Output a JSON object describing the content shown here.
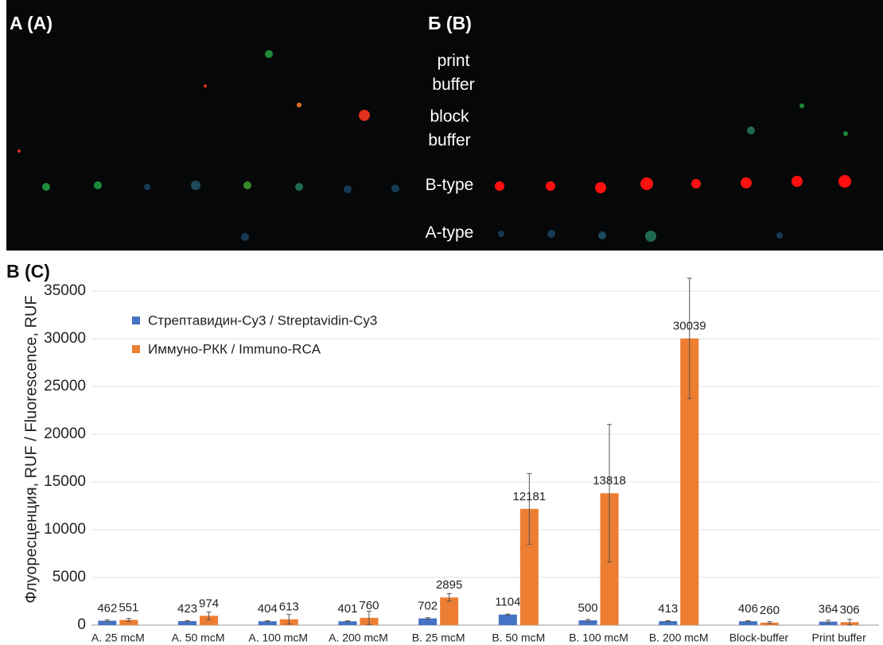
{
  "panels": {
    "a": "A (A)",
    "b": "Б (B)",
    "c": "В (C)"
  },
  "image_labels": [
    "print buffer",
    "block buffer",
    "B-type",
    "A-type"
  ],
  "chart_data": {
    "type": "bar",
    "y_label": "Флуоресценция, RUF / Fluorescence, RUF",
    "categories": [
      "A. 25 mcM",
      "A. 50 mcM",
      "A. 100 mcM",
      "A. 200 mcM",
      "B. 25 mcM",
      "B. 50 mcM",
      "B. 100 mcM",
      "B. 200 mcM",
      "Block-buffer",
      "Print buffer"
    ],
    "series": [
      {
        "name": "Стрептавидин-Cy3 / Streptavidin-Cy3",
        "color": "#4472c4",
        "values": [
          462,
          423,
          404,
          401,
          702,
          1104,
          500,
          413,
          406,
          364
        ],
        "errors": [
          100,
          60,
          50,
          50,
          80,
          50,
          100,
          50,
          50,
          150
        ]
      },
      {
        "name": "Иммуно-РКК / Immuno-RCA",
        "color": "#ed7d31",
        "values": [
          551,
          974,
          613,
          760,
          2895,
          12181,
          13818,
          30039,
          260,
          306
        ],
        "errors": [
          150,
          400,
          500,
          700,
          400,
          3700,
          7200,
          6300,
          100,
          300
        ]
      }
    ],
    "ylim": [
      0,
      35000
    ],
    "yticks": [
      0,
      5000,
      10000,
      15000,
      20000,
      25000,
      30000,
      35000
    ],
    "grid": true,
    "legend": "upper-left"
  }
}
